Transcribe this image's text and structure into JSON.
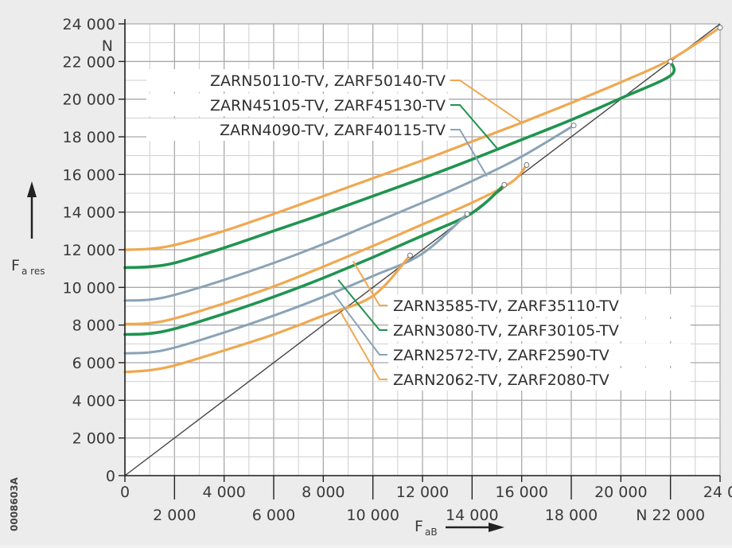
{
  "chart_data": {
    "type": "line",
    "figure_code": "0008603A",
    "y_axis": {
      "name": "F",
      "subscript": "a res",
      "unit": "N",
      "range": [
        0,
        24000
      ],
      "ticks": [
        0,
        2000,
        4000,
        6000,
        8000,
        10000,
        12000,
        14000,
        16000,
        18000,
        20000,
        22000,
        24000
      ],
      "tick_labels": [
        "0",
        "2 000",
        "4 000",
        "6 000",
        "8 000",
        "10 000",
        "12 000",
        "14 000",
        "16 000",
        "18 000",
        "20 000",
        "22 000",
        "24 000"
      ]
    },
    "x_axis": {
      "name": "F",
      "subscript": "aB",
      "unit": "N",
      "range": [
        0,
        24000
      ],
      "ticks_upper": [
        0,
        4000,
        8000,
        12000,
        16000,
        20000,
        24000
      ],
      "tick_labels_upper": [
        "0",
        "4 000",
        "8 000",
        "12 000",
        "16 000",
        "20 000",
        "24 000"
      ],
      "ticks_lower": [
        2000,
        6000,
        10000,
        14000,
        18000,
        22000
      ],
      "tick_labels_lower": [
        "2 000",
        "6 000",
        "10 000",
        "14 000",
        "18 000",
        "N 22 000"
      ]
    },
    "grid": true,
    "reference_line": {
      "x": [
        0,
        24000
      ],
      "y": [
        0,
        24000
      ]
    },
    "series": [
      {
        "name": "ZARN50110-TV, ZARF50140-TV",
        "color": "#f0a850",
        "width": 3.2,
        "points": [
          [
            0,
            12000
          ],
          [
            1000,
            12050
          ],
          [
            2000,
            12250
          ],
          [
            4000,
            13000
          ],
          [
            6000,
            13900
          ],
          [
            8000,
            14850
          ],
          [
            10000,
            15800
          ],
          [
            12000,
            16750
          ],
          [
            14000,
            17750
          ],
          [
            16000,
            18750
          ],
          [
            18000,
            19800
          ],
          [
            20000,
            20900
          ],
          [
            22000,
            22100
          ],
          [
            24000,
            23800
          ]
        ]
      },
      {
        "name": "ZARN45105-TV, ZARF45130-TV",
        "color": "#1f9450",
        "width": 3.6,
        "points": [
          [
            0,
            11050
          ],
          [
            1000,
            11100
          ],
          [
            2000,
            11300
          ],
          [
            4000,
            12100
          ],
          [
            6000,
            13000
          ],
          [
            8000,
            13900
          ],
          [
            10000,
            14850
          ],
          [
            12000,
            15800
          ],
          [
            14000,
            16800
          ],
          [
            16000,
            17850
          ],
          [
            18000,
            18900
          ],
          [
            20000,
            20050
          ],
          [
            22000,
            21250
          ],
          [
            22000,
            22000
          ]
        ]
      },
      {
        "name": "ZARN4090-TV, ZARF40115-TV",
        "color": "#8aa3b6",
        "width": 3.0,
        "points": [
          [
            0,
            9300
          ],
          [
            1000,
            9350
          ],
          [
            2000,
            9600
          ],
          [
            4000,
            10400
          ],
          [
            6000,
            11300
          ],
          [
            8000,
            12300
          ],
          [
            10000,
            13400
          ],
          [
            12000,
            14500
          ],
          [
            14000,
            15650
          ],
          [
            16000,
            16950
          ],
          [
            18100,
            18600
          ]
        ]
      },
      {
        "name": "ZARN3585-TV, ZARF35110-TV",
        "color": "#f0a850",
        "width": 3.2,
        "points": [
          [
            0,
            8050
          ],
          [
            1000,
            8100
          ],
          [
            2000,
            8350
          ],
          [
            4000,
            9150
          ],
          [
            6000,
            10050
          ],
          [
            8000,
            11100
          ],
          [
            10000,
            12200
          ],
          [
            12000,
            13350
          ],
          [
            14000,
            14500
          ],
          [
            15600,
            15600
          ],
          [
            16200,
            16500
          ]
        ]
      },
      {
        "name": "ZARN3080-TV, ZARF30105-TV",
        "color": "#1f9450",
        "width": 3.6,
        "points": [
          [
            0,
            7500
          ],
          [
            1000,
            7550
          ],
          [
            2000,
            7800
          ],
          [
            4000,
            8600
          ],
          [
            6000,
            9500
          ],
          [
            8000,
            10500
          ],
          [
            10000,
            11600
          ],
          [
            12000,
            12750
          ],
          [
            14000,
            13950
          ],
          [
            15300,
            15450
          ]
        ]
      },
      {
        "name": "ZARN2572-TV, ZARF2590-TV",
        "color": "#8aa3b6",
        "width": 3.0,
        "points": [
          [
            0,
            6500
          ],
          [
            1000,
            6550
          ],
          [
            2000,
            6800
          ],
          [
            4000,
            7600
          ],
          [
            6000,
            8500
          ],
          [
            8000,
            9500
          ],
          [
            10000,
            10600
          ],
          [
            12000,
            11800
          ],
          [
            13800,
            13900
          ]
        ]
      },
      {
        "name": "ZARN2062-TV, ZARF2080-TV",
        "color": "#f0a850",
        "width": 3.2,
        "points": [
          [
            0,
            5500
          ],
          [
            1000,
            5600
          ],
          [
            2000,
            5850
          ],
          [
            4000,
            6650
          ],
          [
            6000,
            7500
          ],
          [
            8000,
            8500
          ],
          [
            10000,
            9550
          ],
          [
            11500,
            11700
          ]
        ]
      }
    ],
    "legend_upper": [
      {
        "label": "ZARN50110-TV, ZARF50140-TV",
        "series": 0
      },
      {
        "label": "ZARN45105-TV, ZARF45130-TV",
        "series": 1
      },
      {
        "label": "ZARN4090-TV, ZARF40115-TV",
        "series": 2
      }
    ],
    "legend_lower": [
      {
        "label": "ZARN3585-TV, ZARF35110-TV",
        "series": 3
      },
      {
        "label": "ZARN3080-TV, ZARF30105-TV",
        "series": 4
      },
      {
        "label": "ZARN2572-TV, ZARF2590-TV",
        "series": 5
      },
      {
        "label": "ZARN2062-TV, ZARF2080-TV",
        "series": 6
      }
    ]
  }
}
